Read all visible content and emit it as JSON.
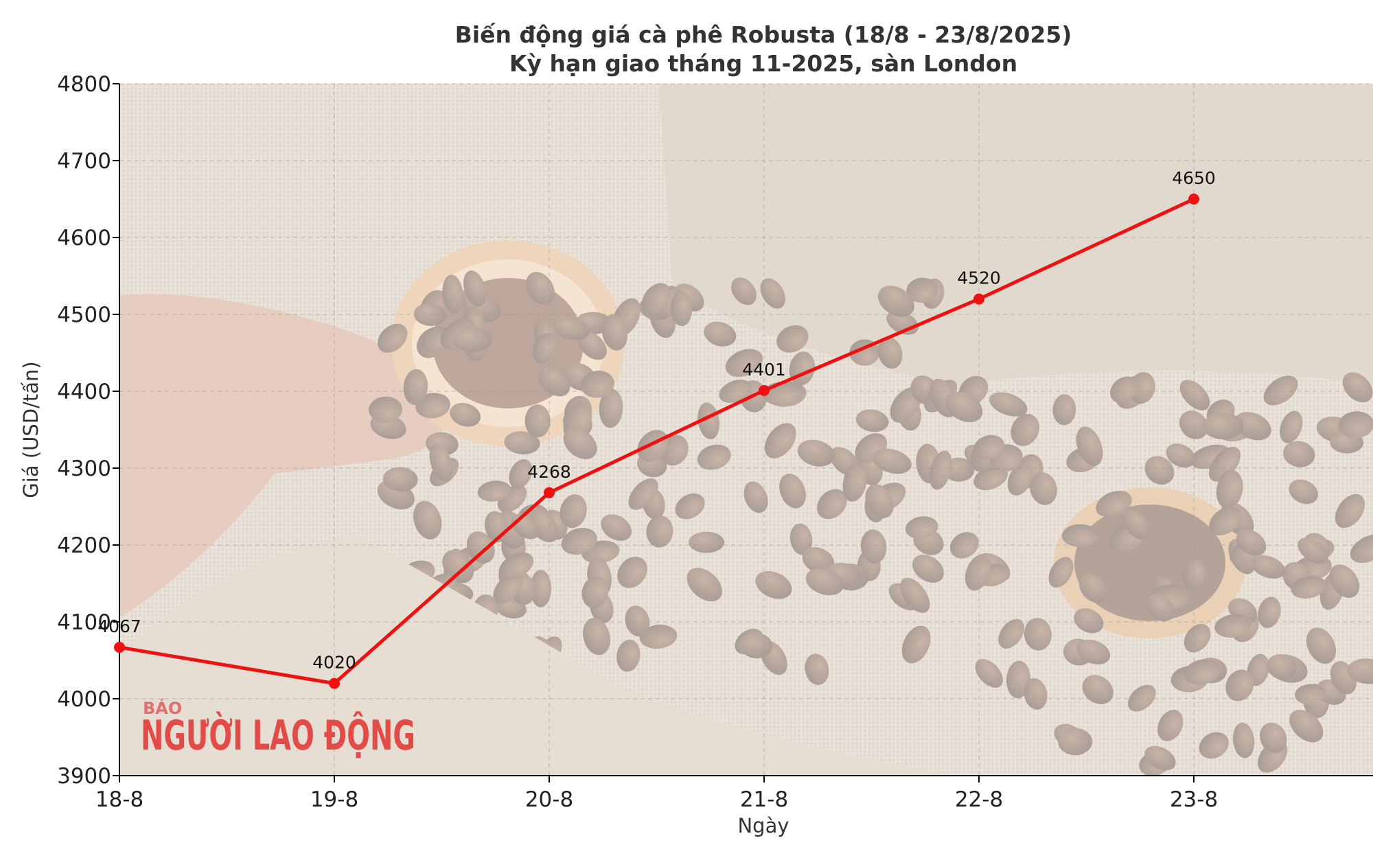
{
  "chart_data": {
    "type": "line",
    "title": "Biến động giá cà phê Robusta (18/8 - 23/8/2025)",
    "subtitle": "Kỳ hạn giao tháng 11-2025, sàn London",
    "xlabel": "Ngày",
    "ylabel": "Giá (USD/tấn)",
    "categories": [
      "18-8",
      "19-8",
      "20-8",
      "21-8",
      "22-8",
      "23-8"
    ],
    "values": [
      4067,
      4020,
      4268,
      4401,
      4520,
      4650
    ],
    "ylim": [
      3900,
      4800
    ],
    "yticks": [
      "3900",
      "4000",
      "4100",
      "4200",
      "4300",
      "4400",
      "4500",
      "4600",
      "4700",
      "4800"
    ],
    "grid": true,
    "line_color": "#ee1111",
    "data_labels": [
      "4067",
      "4020",
      "4268",
      "4401",
      "4520",
      "4650"
    ]
  },
  "watermark": {
    "small_text": "BÁO",
    "big_text": "NGƯỜI LAO ĐỘNG"
  },
  "background": {
    "icons": [
      "burlap-sack",
      "coffee-beans",
      "dried-orange-slice",
      "hand"
    ]
  }
}
